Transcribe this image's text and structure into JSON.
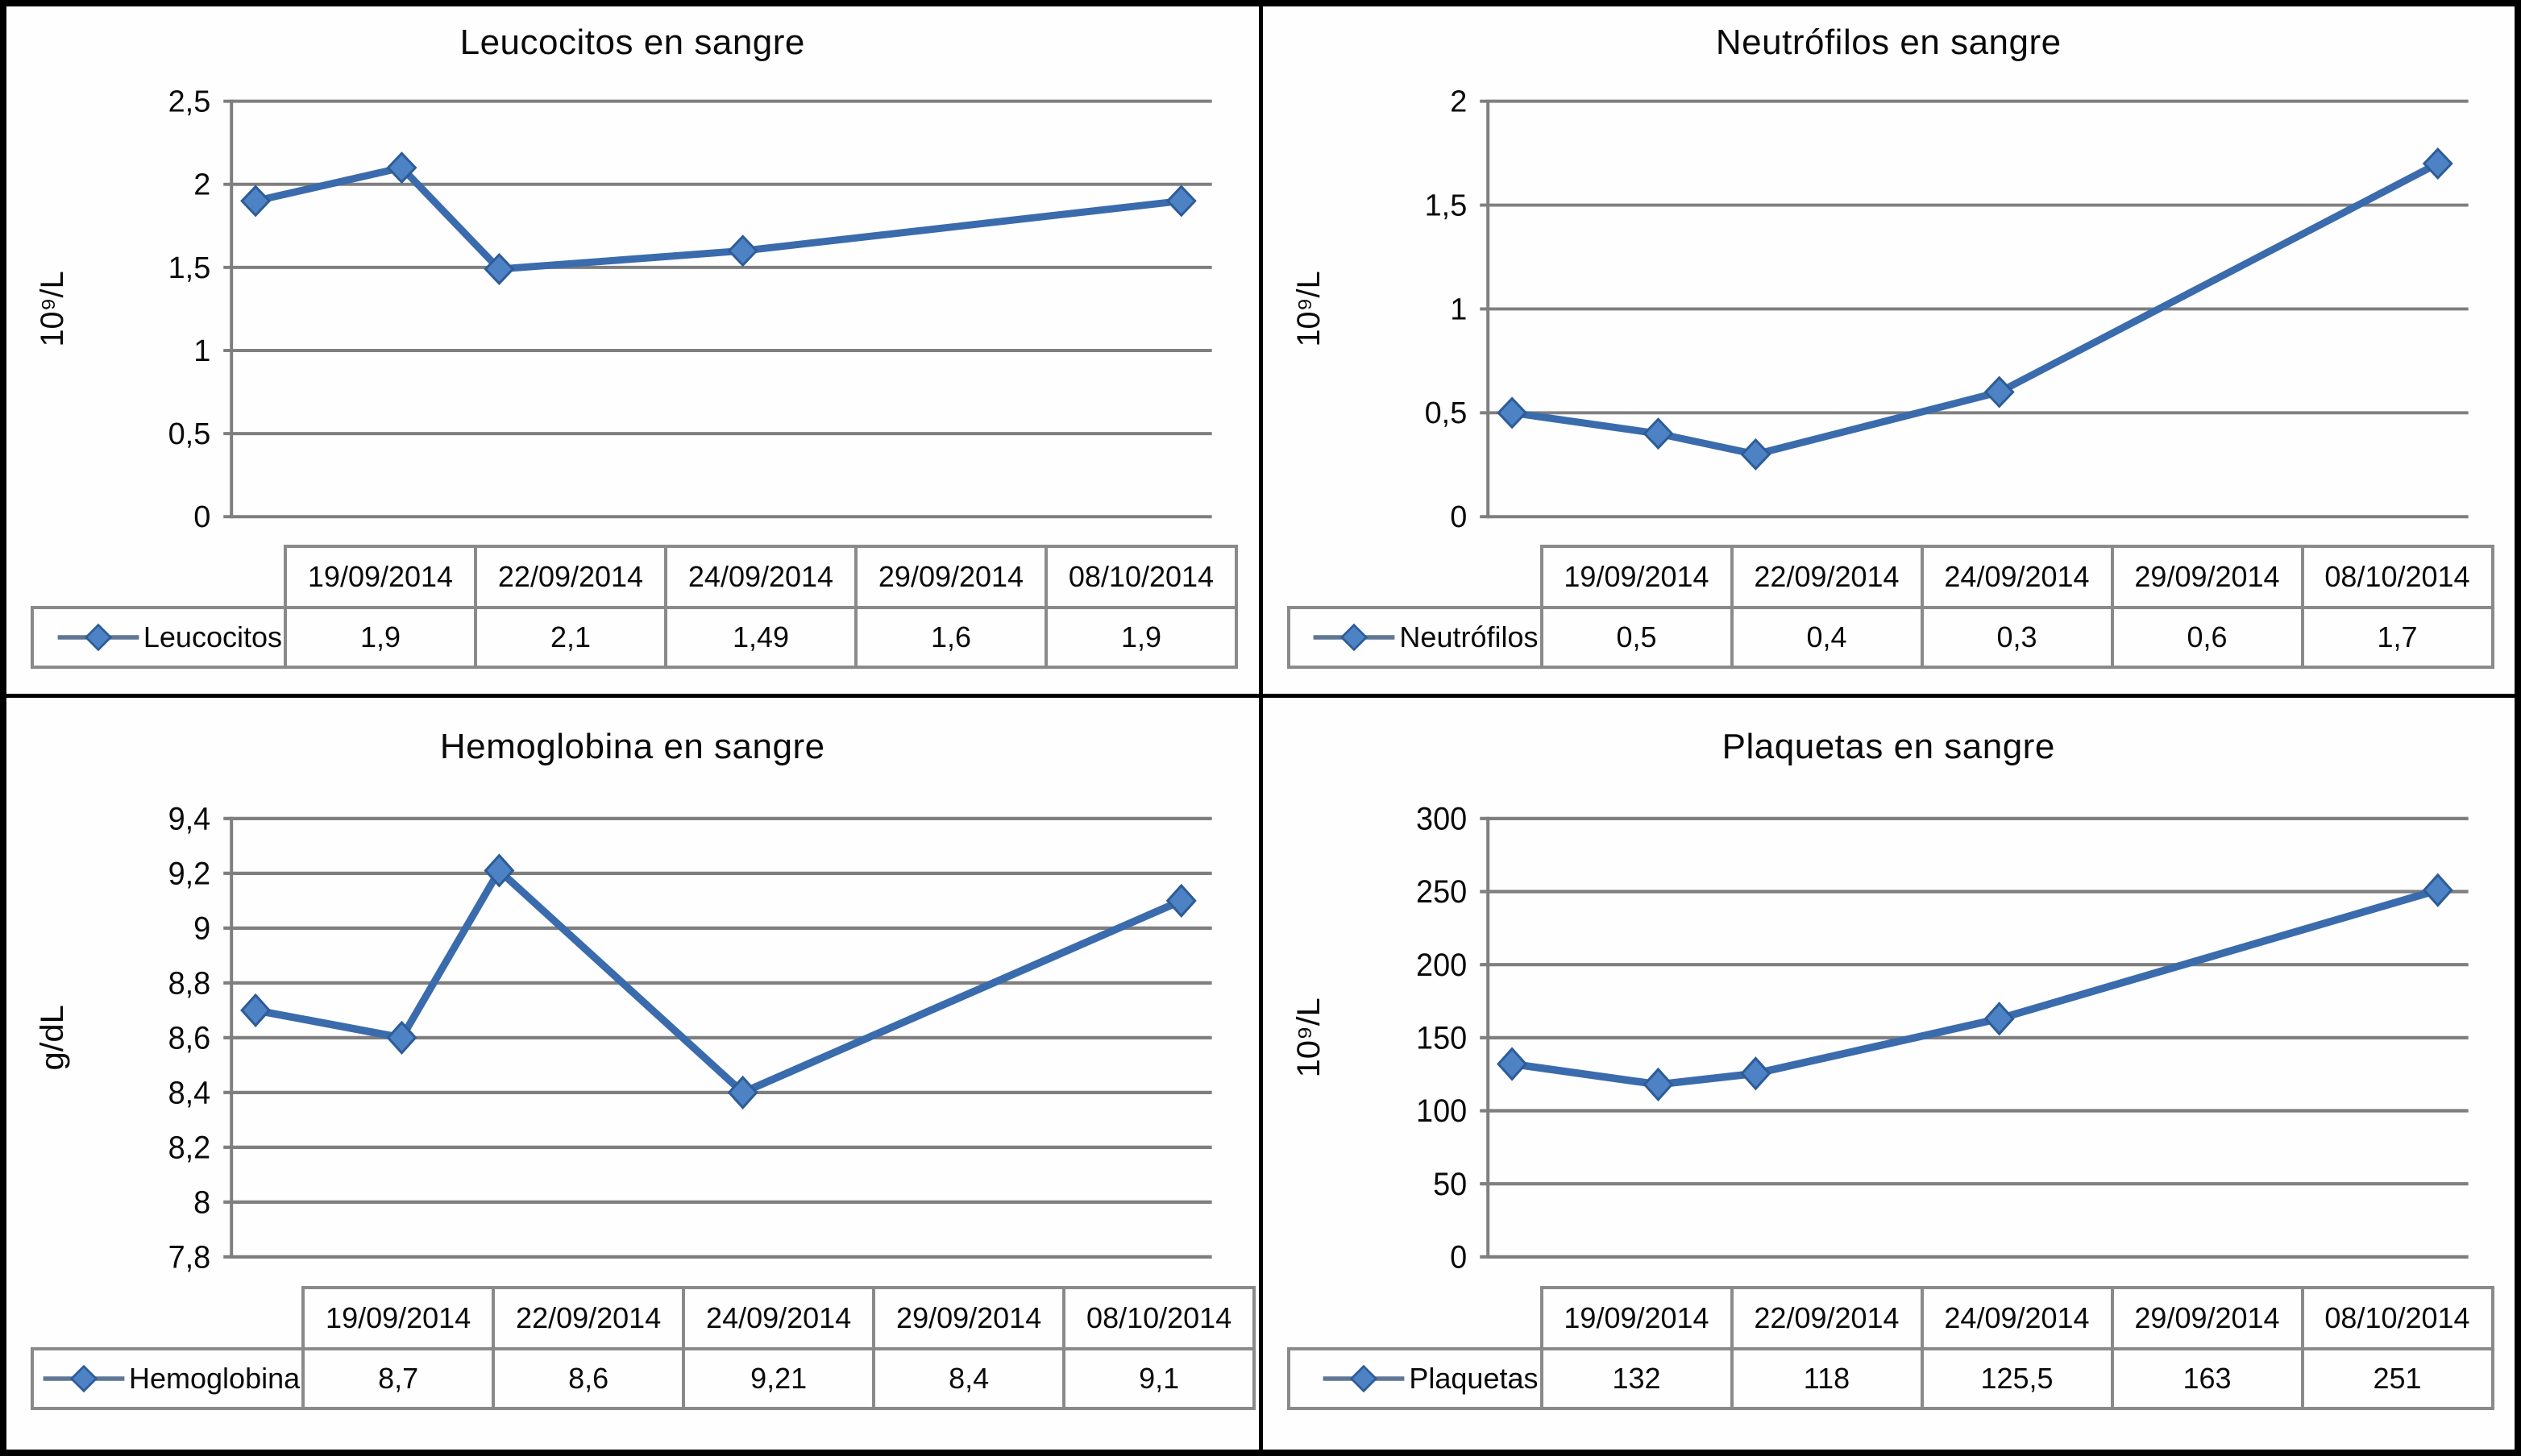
{
  "colors": {
    "line": "#3a6bac",
    "marker_fill": "#4d82c4",
    "marker_stroke": "#2d5c97",
    "legend_line": "#5f7795",
    "grid": "#7f7f7f",
    "axis": "#7f7f7f",
    "table_border": "#8a8a8a",
    "panel_border": "#000000",
    "text": "#0a0a0a",
    "background": "#ffffff"
  },
  "chart_data": [
    {
      "type": "line",
      "title": "Leucocitos en sangre",
      "ylabel": "10⁹/L",
      "legend": "Leucocitos",
      "categories": [
        "19/09/2014",
        "22/09/2014",
        "24/09/2014",
        "29/09/2014",
        "08/10/2014"
      ],
      "values": [
        1.9,
        2.1,
        1.49,
        1.6,
        1.9
      ],
      "value_labels": [
        "1,9",
        "2,1",
        "1,49",
        "1,6",
        "1,9"
      ],
      "ylim": [
        0,
        2.5
      ],
      "ytick_labels": [
        "2,5",
        "2",
        "1,5",
        "1",
        "0,5",
        "0"
      ],
      "grid": true,
      "x_axis": "date-scaled",
      "legend_position": "table-left"
    },
    {
      "type": "line",
      "title": "Neutrófilos en sangre",
      "ylabel": "10⁹/L",
      "legend": "Neutrófilos",
      "categories": [
        "19/09/2014",
        "22/09/2014",
        "24/09/2014",
        "29/09/2014",
        "08/10/2014"
      ],
      "values": [
        0.5,
        0.4,
        0.3,
        0.6,
        1.7
      ],
      "value_labels": [
        "0,5",
        "0,4",
        "0,3",
        "0,6",
        "1,7"
      ],
      "ylim": [
        0,
        2
      ],
      "ytick_labels": [
        "2",
        "1,5",
        "1",
        "0,5",
        "0"
      ],
      "grid": true,
      "x_axis": "date-scaled",
      "legend_position": "table-left"
    },
    {
      "type": "line",
      "title": "Hemoglobina en sangre",
      "ylabel": "g/dL",
      "legend": "Hemoglobina",
      "categories": [
        "19/09/2014",
        "22/09/2014",
        "24/09/2014",
        "29/09/2014",
        "08/10/2014"
      ],
      "values": [
        8.7,
        8.6,
        9.21,
        8.4,
        9.1
      ],
      "value_labels": [
        "8,7",
        "8,6",
        "9,21",
        "8,4",
        "9,1"
      ],
      "ylim": [
        7.8,
        9.4
      ],
      "ytick_labels": [
        "9,4",
        "9,2",
        "9",
        "8,8",
        "8,6",
        "8,4",
        "8,2",
        "8",
        "7,8"
      ],
      "grid": true,
      "x_axis": "date-scaled",
      "legend_position": "table-left"
    },
    {
      "type": "line",
      "title": "Plaquetas en sangre",
      "ylabel": "10⁹/L",
      "legend": "Plaquetas",
      "categories": [
        "19/09/2014",
        "22/09/2014",
        "24/09/2014",
        "29/09/2014",
        "08/10/2014"
      ],
      "values": [
        132,
        118,
        125.5,
        163,
        251
      ],
      "value_labels": [
        "132",
        "118",
        "125,5",
        "163",
        "251"
      ],
      "ylim": [
        0,
        300
      ],
      "ytick_labels": [
        "300",
        "250",
        "200",
        "150",
        "100",
        "50",
        "0"
      ],
      "grid": true,
      "x_axis": "date-scaled",
      "legend_position": "table-left"
    }
  ]
}
